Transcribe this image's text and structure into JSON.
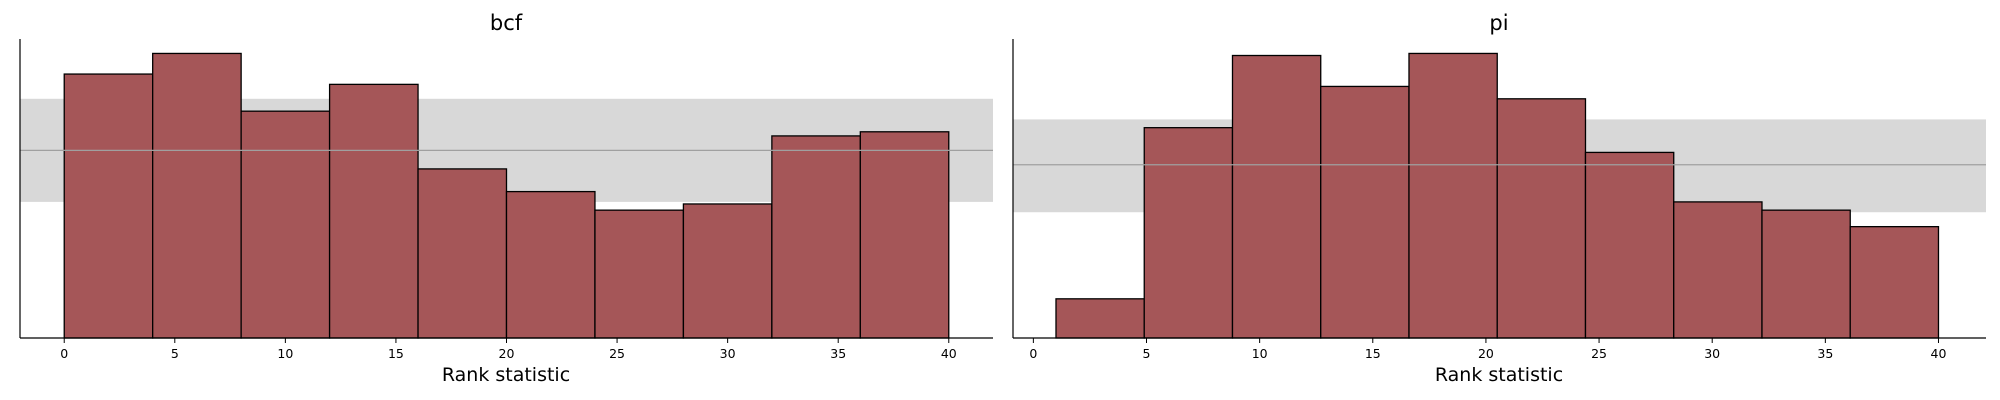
{
  "chart_data": [
    {
      "type": "bar",
      "title": "bcf",
      "xlabel": "Rank statistic",
      "ylabel": "",
      "xlim": [
        -2,
        42
      ],
      "ylim": [
        0,
        14.5
      ],
      "xticks": [
        0,
        5,
        10,
        15,
        20,
        25,
        30,
        35,
        40
      ],
      "bins": [
        {
          "x0": 0,
          "x1": 4,
          "count": 12.8
        },
        {
          "x0": 4,
          "x1": 8,
          "count": 13.8
        },
        {
          "x0": 8,
          "x1": 12,
          "count": 11.0
        },
        {
          "x0": 12,
          "x1": 16,
          "count": 12.3
        },
        {
          "x0": 16,
          "x1": 20,
          "count": 8.2
        },
        {
          "x0": 20,
          "x1": 24,
          "count": 7.1
        },
        {
          "x0": 24,
          "x1": 28,
          "count": 6.2
        },
        {
          "x0": 28,
          "x1": 32,
          "count": 6.5
        },
        {
          "x0": 32,
          "x1": 36,
          "count": 9.8
        },
        {
          "x0": 36,
          "x1": 40,
          "count": 10.0
        }
      ],
      "reference": {
        "mean": 9.1,
        "band": [
          6.6,
          11.6
        ]
      },
      "grid": false
    },
    {
      "type": "bar",
      "title": "pi",
      "xlabel": "Rank statistic",
      "ylabel": "",
      "xlim": [
        -0.9,
        42.1
      ],
      "ylim": [
        0,
        14.5
      ],
      "xticks": [
        0,
        5,
        10,
        15,
        20,
        25,
        30,
        35,
        40
      ],
      "bins": [
        {
          "x0": 1.0,
          "x1": 4.9,
          "count": 1.9
        },
        {
          "x0": 4.9,
          "x1": 8.8,
          "count": 10.2
        },
        {
          "x0": 8.8,
          "x1": 12.7,
          "count": 13.7
        },
        {
          "x0": 12.7,
          "x1": 16.6,
          "count": 12.2
        },
        {
          "x0": 16.6,
          "x1": 20.5,
          "count": 13.8
        },
        {
          "x0": 20.5,
          "x1": 24.4,
          "count": 11.6
        },
        {
          "x0": 24.4,
          "x1": 28.3,
          "count": 9.0
        },
        {
          "x0": 28.3,
          "x1": 32.2,
          "count": 6.6
        },
        {
          "x0": 32.2,
          "x1": 36.1,
          "count": 6.2
        },
        {
          "x0": 36.1,
          "x1": 40.0,
          "count": 5.4
        }
      ],
      "reference": {
        "mean": 8.4,
        "band": [
          6.1,
          10.6
        ]
      },
      "grid": false
    }
  ],
  "colors": {
    "bar_fill": "#a55658",
    "bar_edge": "#000000",
    "band_fill": "#d8d8d8",
    "ref_line": "#a0a0a0",
    "axis": "#000000"
  }
}
